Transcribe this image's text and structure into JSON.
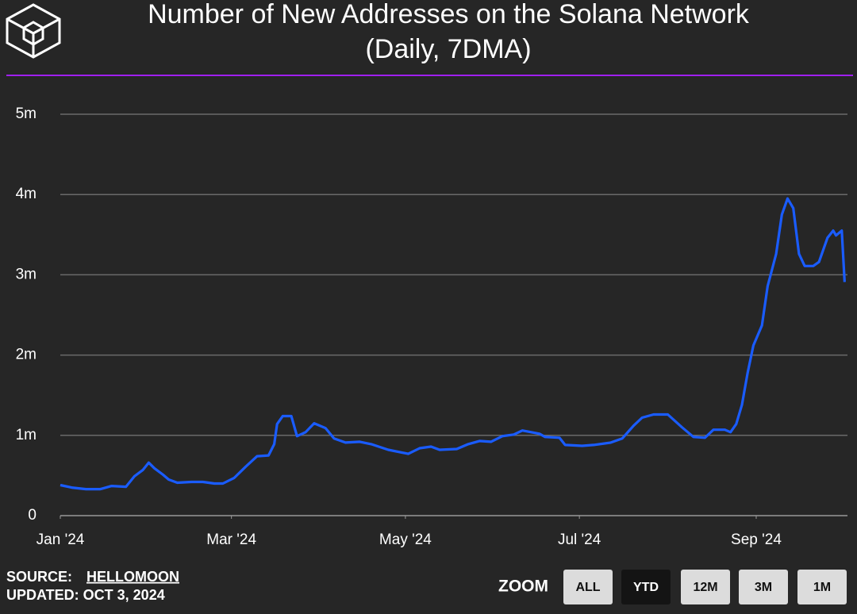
{
  "chart_data": {
    "type": "line",
    "title": "Number of New Addresses on the Solana Network",
    "subtitle": "(Daily, 7DMA)",
    "color": "#1a5cff",
    "grid": true,
    "x": [
      0,
      4,
      9,
      14,
      18,
      23,
      26,
      29,
      31,
      33,
      36,
      38,
      41,
      46,
      50,
      54,
      57,
      61,
      65,
      69,
      73,
      75,
      76,
      78,
      81,
      83,
      86,
      89,
      93,
      96,
      100,
      105,
      109,
      115,
      122,
      126,
      130,
      133,
      139,
      143,
      147,
      151,
      155,
      159,
      162,
      168,
      170,
      175,
      177,
      183,
      187,
      193,
      197,
      201,
      204,
      208,
      213,
      218,
      222,
      226,
      229,
      233,
      235,
      237,
      239,
      241,
      243,
      246,
      248,
      251,
      253,
      255,
      257,
      259,
      261,
      264,
      266,
      269,
      271,
      272,
      274,
      275
    ],
    "values": [
      380000,
      350000,
      330000,
      330000,
      370000,
      360000,
      490000,
      570000,
      660000,
      590000,
      510000,
      450000,
      410000,
      420000,
      420000,
      400000,
      400000,
      470000,
      610000,
      740000,
      750000,
      890000,
      1140000,
      1240000,
      1240000,
      990000,
      1040000,
      1150000,
      1090000,
      960000,
      910000,
      920000,
      890000,
      820000,
      770000,
      840000,
      860000,
      820000,
      830000,
      890000,
      930000,
      920000,
      990000,
      1010000,
      1060000,
      1020000,
      980000,
      970000,
      880000,
      870000,
      880000,
      910000,
      960000,
      1120000,
      1220000,
      1260000,
      1260000,
      1100000,
      980000,
      970000,
      1070000,
      1070000,
      1040000,
      1140000,
      1380000,
      1780000,
      2120000,
      2370000,
      2860000,
      3260000,
      3750000,
      3950000,
      3830000,
      3260000,
      3110000,
      3110000,
      3160000,
      3460000,
      3550000,
      3490000,
      3550000,
      2910000
    ],
    "xlim": [
      0,
      276
    ],
    "xticks": [
      {
        "value": 0,
        "label": "Jan '24"
      },
      {
        "value": 60,
        "label": "Mar '24"
      },
      {
        "value": 121,
        "label": "May '24"
      },
      {
        "value": 182,
        "label": "Jul '24"
      },
      {
        "value": 244,
        "label": "Sep '24"
      }
    ],
    "ylim": [
      0,
      5000000
    ],
    "yticks": [
      0,
      {
        "value": 1000000,
        "label": "1m"
      },
      {
        "value": 2000000,
        "label": "2m"
      },
      {
        "value": 3000000,
        "label": "3m"
      },
      {
        "value": 4000000,
        "label": "4m"
      },
      {
        "value": 5000000,
        "label": "5m"
      }
    ]
  },
  "footer": {
    "source_label": "SOURCE:",
    "source": "HELLOMOON",
    "updated": "UPDATED: OCT 3, 2024"
  },
  "controls": {
    "label": "ZOOM",
    "buttons": [
      "ALL",
      "YTD",
      "12M",
      "3M",
      "1M"
    ],
    "selected": "YTD"
  }
}
